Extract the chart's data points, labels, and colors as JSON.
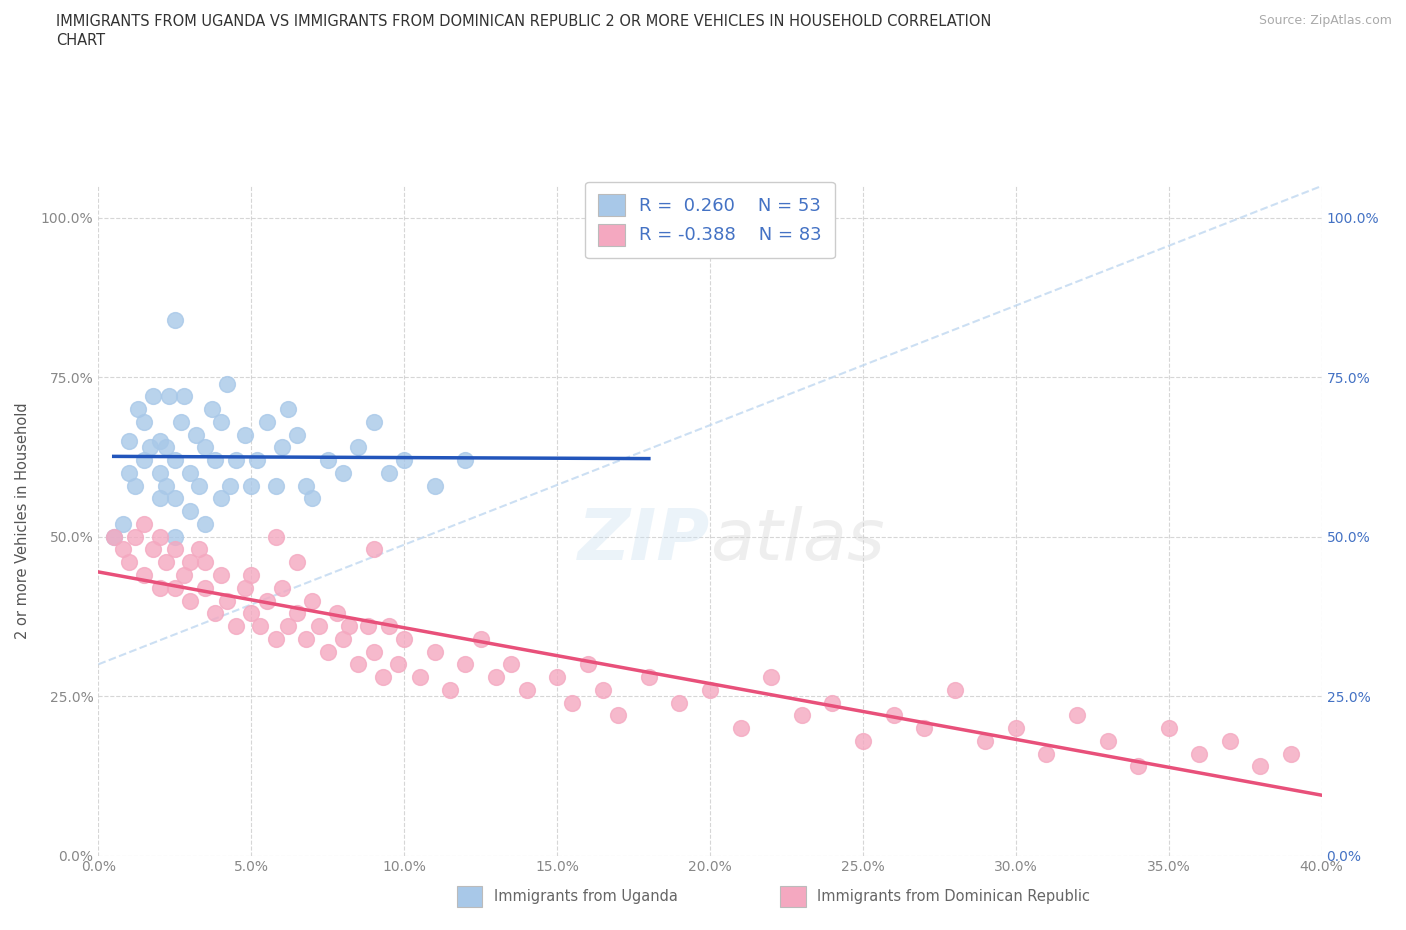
{
  "title_line1": "IMMIGRANTS FROM UGANDA VS IMMIGRANTS FROM DOMINICAN REPUBLIC 2 OR MORE VEHICLES IN HOUSEHOLD CORRELATION",
  "title_line2": "CHART",
  "source": "Source: ZipAtlas.com",
  "ylabel_label": "2 or more Vehicles in Household",
  "series1_label": "Immigrants from Uganda",
  "series2_label": "Immigrants from Dominican Republic",
  "series1_color": "#a8c8e8",
  "series2_color": "#f4a8c0",
  "series1_edge_color": "#a8c8e8",
  "series2_edge_color": "#f4a8c0",
  "series1_line_color": "#2255bb",
  "series2_line_color": "#e8507a",
  "trend_line_color": "#c0d8f0",
  "R1": 0.26,
  "N1": 53,
  "R2": -0.388,
  "N2": 83,
  "legend_text_color": "#4472c4",
  "xlim": [
    0.0,
    0.4
  ],
  "ylim": [
    0.0,
    1.05
  ],
  "xaxis_ticks": [
    0.0,
    0.05,
    0.1,
    0.15,
    0.2,
    0.25,
    0.3,
    0.35,
    0.4
  ],
  "yaxis_ticks": [
    0.0,
    0.25,
    0.5,
    0.75,
    1.0
  ],
  "uganda_x": [
    0.005,
    0.008,
    0.01,
    0.01,
    0.012,
    0.013,
    0.015,
    0.015,
    0.017,
    0.018,
    0.02,
    0.02,
    0.02,
    0.022,
    0.022,
    0.023,
    0.025,
    0.025,
    0.025,
    0.027,
    0.028,
    0.03,
    0.03,
    0.032,
    0.033,
    0.035,
    0.035,
    0.037,
    0.038,
    0.04,
    0.04,
    0.042,
    0.043,
    0.045,
    0.048,
    0.05,
    0.052,
    0.055,
    0.058,
    0.06,
    0.062,
    0.065,
    0.068,
    0.07,
    0.075,
    0.08,
    0.085,
    0.09,
    0.095,
    0.1,
    0.11,
    0.12,
    0.025
  ],
  "uganda_y": [
    0.5,
    0.52,
    0.6,
    0.65,
    0.58,
    0.7,
    0.62,
    0.68,
    0.64,
    0.72,
    0.56,
    0.6,
    0.65,
    0.58,
    0.64,
    0.72,
    0.5,
    0.56,
    0.62,
    0.68,
    0.72,
    0.54,
    0.6,
    0.66,
    0.58,
    0.52,
    0.64,
    0.7,
    0.62,
    0.56,
    0.68,
    0.74,
    0.58,
    0.62,
    0.66,
    0.58,
    0.62,
    0.68,
    0.58,
    0.64,
    0.7,
    0.66,
    0.58,
    0.56,
    0.62,
    0.6,
    0.64,
    0.68,
    0.6,
    0.62,
    0.58,
    0.62,
    0.84
  ],
  "dr_x": [
    0.005,
    0.008,
    0.01,
    0.012,
    0.015,
    0.015,
    0.018,
    0.02,
    0.02,
    0.022,
    0.025,
    0.025,
    0.028,
    0.03,
    0.03,
    0.033,
    0.035,
    0.035,
    0.038,
    0.04,
    0.042,
    0.045,
    0.048,
    0.05,
    0.05,
    0.053,
    0.055,
    0.058,
    0.06,
    0.062,
    0.065,
    0.068,
    0.07,
    0.072,
    0.075,
    0.078,
    0.08,
    0.082,
    0.085,
    0.088,
    0.09,
    0.093,
    0.095,
    0.098,
    0.1,
    0.105,
    0.11,
    0.115,
    0.12,
    0.125,
    0.13,
    0.135,
    0.14,
    0.15,
    0.155,
    0.16,
    0.165,
    0.17,
    0.18,
    0.19,
    0.2,
    0.21,
    0.22,
    0.23,
    0.24,
    0.25,
    0.26,
    0.27,
    0.28,
    0.29,
    0.3,
    0.31,
    0.32,
    0.33,
    0.34,
    0.35,
    0.36,
    0.37,
    0.38,
    0.39,
    0.058,
    0.065,
    0.09
  ],
  "dr_y": [
    0.5,
    0.48,
    0.46,
    0.5,
    0.44,
    0.52,
    0.48,
    0.42,
    0.5,
    0.46,
    0.42,
    0.48,
    0.44,
    0.4,
    0.46,
    0.48,
    0.42,
    0.46,
    0.38,
    0.44,
    0.4,
    0.36,
    0.42,
    0.38,
    0.44,
    0.36,
    0.4,
    0.34,
    0.42,
    0.36,
    0.38,
    0.34,
    0.4,
    0.36,
    0.32,
    0.38,
    0.34,
    0.36,
    0.3,
    0.36,
    0.32,
    0.28,
    0.36,
    0.3,
    0.34,
    0.28,
    0.32,
    0.26,
    0.3,
    0.34,
    0.28,
    0.3,
    0.26,
    0.28,
    0.24,
    0.3,
    0.26,
    0.22,
    0.28,
    0.24,
    0.26,
    0.2,
    0.28,
    0.22,
    0.24,
    0.18,
    0.22,
    0.2,
    0.26,
    0.18,
    0.2,
    0.16,
    0.22,
    0.18,
    0.14,
    0.2,
    0.16,
    0.18,
    0.14,
    0.16,
    0.5,
    0.46,
    0.48
  ]
}
